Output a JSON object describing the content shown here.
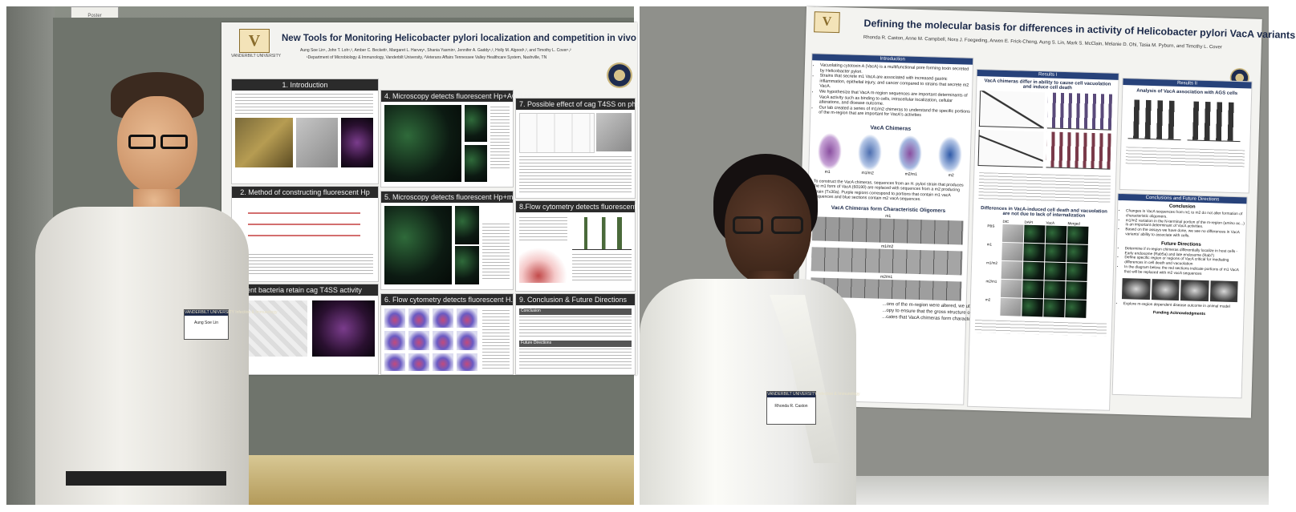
{
  "left_poster": {
    "title": "New Tools for Monitoring Helicobacter pylori localization and competition in vivo",
    "authors": "Aung Soe Lin¹, John T. Loh¹,², Amber C. Beckett¹, Margaret L. Harvey¹, Shania Yasmin¹, Jennifer A. Gaddy¹,², Holly M. Algood¹,², and Timothy L. Cover¹,²",
    "affiliations": "¹Department of Microbiology & Immunology, Vanderbilt University, ²Veterans Affairs Tennessee Valley Healthcare System, Nashville, TN",
    "logo_text": "VANDERBILT UNIVERSITY",
    "sections": [
      "1. Introduction",
      "2. Method of constructing fluorescent Hp",
      "escent bacteria retain cag T4SS activity",
      "4. Microscopy detects fluorescent Hp+AGS cells",
      "5. Microscopy detects fluorescent Hp+mϕ",
      "6. Flow cytometry detects fluorescent H. pylori",
      "7. Possible effect of cag T4SS on phagocytosis",
      "8.Flow cytometry detects fluorescent Hp in vivo",
      "9. Conclusion & Future Directions"
    ],
    "sub_labels": {
      "conclusion": "Conclusion",
      "future": "Future Directions"
    }
  },
  "right_poster": {
    "title": "Defining the molecular basis for differences in activity of Helicobacter pylori VacA variants",
    "authors": "Rhonda R. Caston, Anne M. Campbell, Nora J. Foegeding, Arwen E. Frick-Cheng, Aung S. Lin, Mark S. McClain, Melanie D. Ohi, Tasia M. Pyburn, and Timothy L. Cover",
    "headers": [
      "Introduction",
      "Results I",
      "Results II",
      "Conclusions and Future Directions"
    ],
    "intro_bullets": [
      "Vacuolating cytotoxin A (VacA) is a multifunctional pore forming toxin secreted by Helicobacter pylori.",
      "Strains that secrete m1 VacA are associated with increased gastric inflammation, epithelial injury, and cancer compared to strains that secrete m2 VacA.",
      "We hypothesize that VacA m-region sequences are important determinants of VacA activity such as binding to cells, intracellular localization, cellular alterations, and disease outcome.",
      "Our lab created a series of m1/m2 chimeras to understand the specific portions of the m-region that are important for VacA's activities"
    ],
    "chimeras_title": "VacA Chimeras",
    "chimera_labels": [
      "m1",
      "m1/m2",
      "m2/m1",
      "m2"
    ],
    "chimera_text": "To construct the VacA chimeras, sequences from an H. pylori strain that produces the m1 form of VacA (60190) are replaced with sequences from a m2 producing strain (Tx30a). Purple regions correspond to portions that contain m1 vacA sequences and blue sections contain m2 vacA sequences.",
    "oligomer_title": "VacA Chimeras form Characteristic Oligomers",
    "oligomer_labels": [
      "m1",
      "m1/m2",
      "m2/m1"
    ],
    "oligomer_text1": "...ons of the m-region were altered, we utilized",
    "oligomer_text2": "...opy to ensure that the gross structure of VacA is",
    "oligomer_text3": "...cates that VacA chimeras form characteristic",
    "results1_title": "VacA chimeras differ in ability to cause cell vacuolation and induce cell death",
    "results2_title": "Analysis of VacA association with AGS cells",
    "internalization_title": "Differences in VacA-induced cell death and vacuolation are not due to lack of internalization",
    "micro_cols": [
      "DIC",
      "DAPI",
      "VacA",
      "Merged"
    ],
    "micro_rows": [
      "PBS",
      "m1",
      "m1/m2",
      "m2/m1",
      "m2"
    ],
    "conclusion_head": "Conclusion",
    "future_head": "Future Directions",
    "conclusion_bullets": [
      "Changes in VacA sequences from m1 to m2 do not alter formation of characteristic oligomers.",
      "m1/m2 variation in the N-terminal portion of the m-region (amino ac...) is an important determinant of VacA activities.",
      "Based on the assays we have done, we see no differences in VacA variants' ability to associate with cells."
    ],
    "future_bullets": [
      "Determine if m-region chimeras differentially localize in host cells - Early endosome (Rab5a) and late endosome (Rab7)",
      "Define specific region or regions of VacA critical for mediating differences in cell death and vacuolation",
      "In the diagram below, the red sections indicate portions of m1 VacA that will be replaced with m2 vacA sequences",
      "Explore m-region dependent disease outcome in animal model"
    ],
    "funding": "Funding Acknowledgments"
  },
  "badges": {
    "left": {
      "header": "VANDERBILT UNIVERSITY Infection & Immunology",
      "name": "Aung Soe Lin"
    },
    "right": {
      "header": "VANDERBILT UNIVERSITY Infection & Immunology",
      "name": "Rhonda R. Caston"
    }
  },
  "wall_sign": "Poster"
}
